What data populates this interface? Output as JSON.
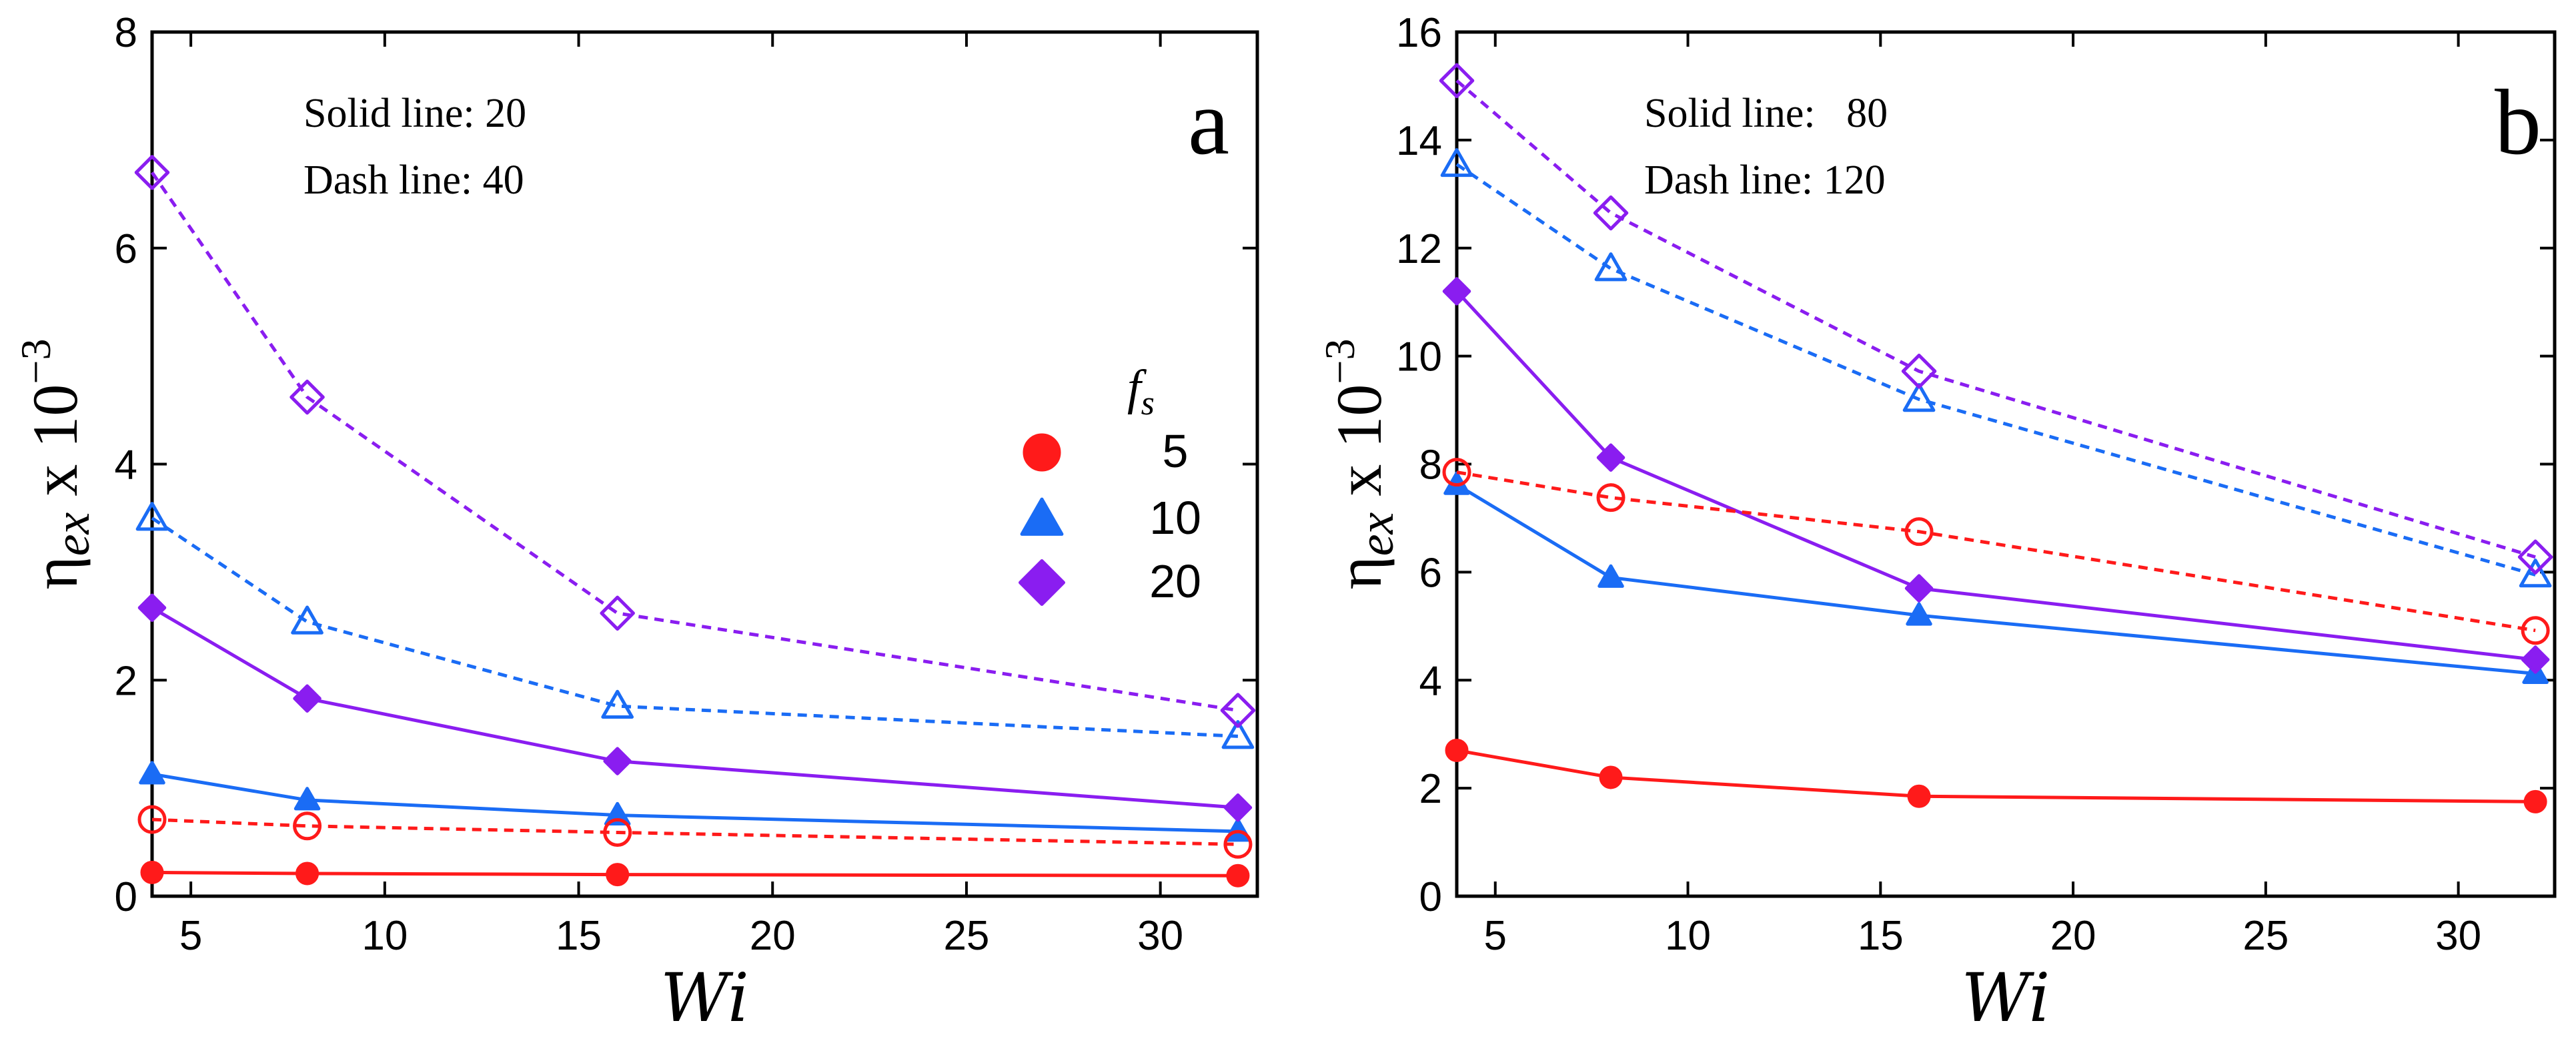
{
  "colors": {
    "5": "#ff1a1a",
    "10": "#1a6cf5",
    "20": "#8a1df0"
  },
  "chart_data": [
    {
      "type": "line",
      "panel_label": "a",
      "xlabel": "Wi",
      "ylabel_main": "η",
      "ylabel_sub": "ex",
      "ylabel_suffix": " x 10",
      "ylabel_exp": "−3",
      "xlim": [
        4,
        32.5
      ],
      "ylim": [
        0,
        8
      ],
      "xticks": [
        5,
        10,
        15,
        20,
        25,
        30
      ],
      "yticks": [
        0,
        2,
        4,
        6,
        8
      ],
      "annotations": [
        "Solid line: 20",
        "Dash line: 40"
      ],
      "legend": {
        "title_main": "f",
        "title_sub": "s",
        "entries": [
          {
            "label": "5",
            "marker": "circle",
            "key": "5"
          },
          {
            "label": "10",
            "marker": "triangle",
            "key": "10"
          },
          {
            "label": "20",
            "marker": "diamond",
            "key": "20"
          }
        ]
      },
      "x": [
        4,
        8,
        16,
        32
      ],
      "series": [
        {
          "name": "fs=5, solid 20",
          "key": "5",
          "marker": "circle",
          "style": "solid",
          "values": [
            0.22,
            0.21,
            0.2,
            0.19
          ]
        },
        {
          "name": "fs=10, solid 20",
          "key": "10",
          "marker": "triangle",
          "style": "solid",
          "values": [
            1.13,
            0.89,
            0.75,
            0.6
          ]
        },
        {
          "name": "fs=20, solid 20",
          "key": "20",
          "marker": "diamond",
          "style": "solid",
          "values": [
            2.67,
            1.83,
            1.25,
            0.82
          ]
        },
        {
          "name": "fs=5, dash 40",
          "key": "5",
          "marker": "circle",
          "style": "dash",
          "values": [
            0.71,
            0.65,
            0.59,
            0.48
          ]
        },
        {
          "name": "fs=10, dash 40",
          "key": "10",
          "marker": "triangle",
          "style": "dash",
          "values": [
            3.5,
            2.54,
            1.76,
            1.48
          ]
        },
        {
          "name": "fs=20, dash 40",
          "key": "20",
          "marker": "diamond",
          "style": "dash",
          "values": [
            6.7,
            4.62,
            2.62,
            1.72
          ]
        }
      ]
    },
    {
      "type": "line",
      "panel_label": "b",
      "xlabel": "Wi",
      "ylabel_main": "η",
      "ylabel_sub": "ex",
      "ylabel_suffix": " x 10",
      "ylabel_exp": "−3",
      "xlim": [
        4,
        32.5
      ],
      "ylim": [
        0,
        16
      ],
      "xticks": [
        5,
        10,
        15,
        20,
        25,
        30
      ],
      "yticks": [
        0,
        2,
        4,
        6,
        8,
        10,
        12,
        14,
        16
      ],
      "annotations": [
        "Solid line:   80",
        "Dash line: 120"
      ],
      "x": [
        4,
        8,
        16,
        32
      ],
      "series": [
        {
          "name": "fs=5, solid 80",
          "key": "5",
          "marker": "circle",
          "style": "solid",
          "values": [
            2.7,
            2.2,
            1.85,
            1.75
          ]
        },
        {
          "name": "fs=10, solid 80",
          "key": "10",
          "marker": "triangle",
          "style": "solid",
          "values": [
            7.62,
            5.9,
            5.2,
            4.12
          ]
        },
        {
          "name": "fs=20, solid 80",
          "key": "20",
          "marker": "diamond",
          "style": "solid",
          "values": [
            11.2,
            8.12,
            5.7,
            4.38
          ]
        },
        {
          "name": "fs=5, dash 120",
          "key": "5",
          "marker": "circle",
          "style": "dash",
          "values": [
            7.85,
            7.38,
            6.75,
            4.92
          ]
        },
        {
          "name": "fs=10, dash 120",
          "key": "10",
          "marker": "triangle",
          "style": "dash",
          "values": [
            13.55,
            11.62,
            9.2,
            5.95
          ]
        },
        {
          "name": "fs=20, dash 120",
          "key": "20",
          "marker": "diamond",
          "style": "dash",
          "values": [
            15.1,
            12.65,
            9.72,
            6.28
          ]
        }
      ]
    }
  ]
}
